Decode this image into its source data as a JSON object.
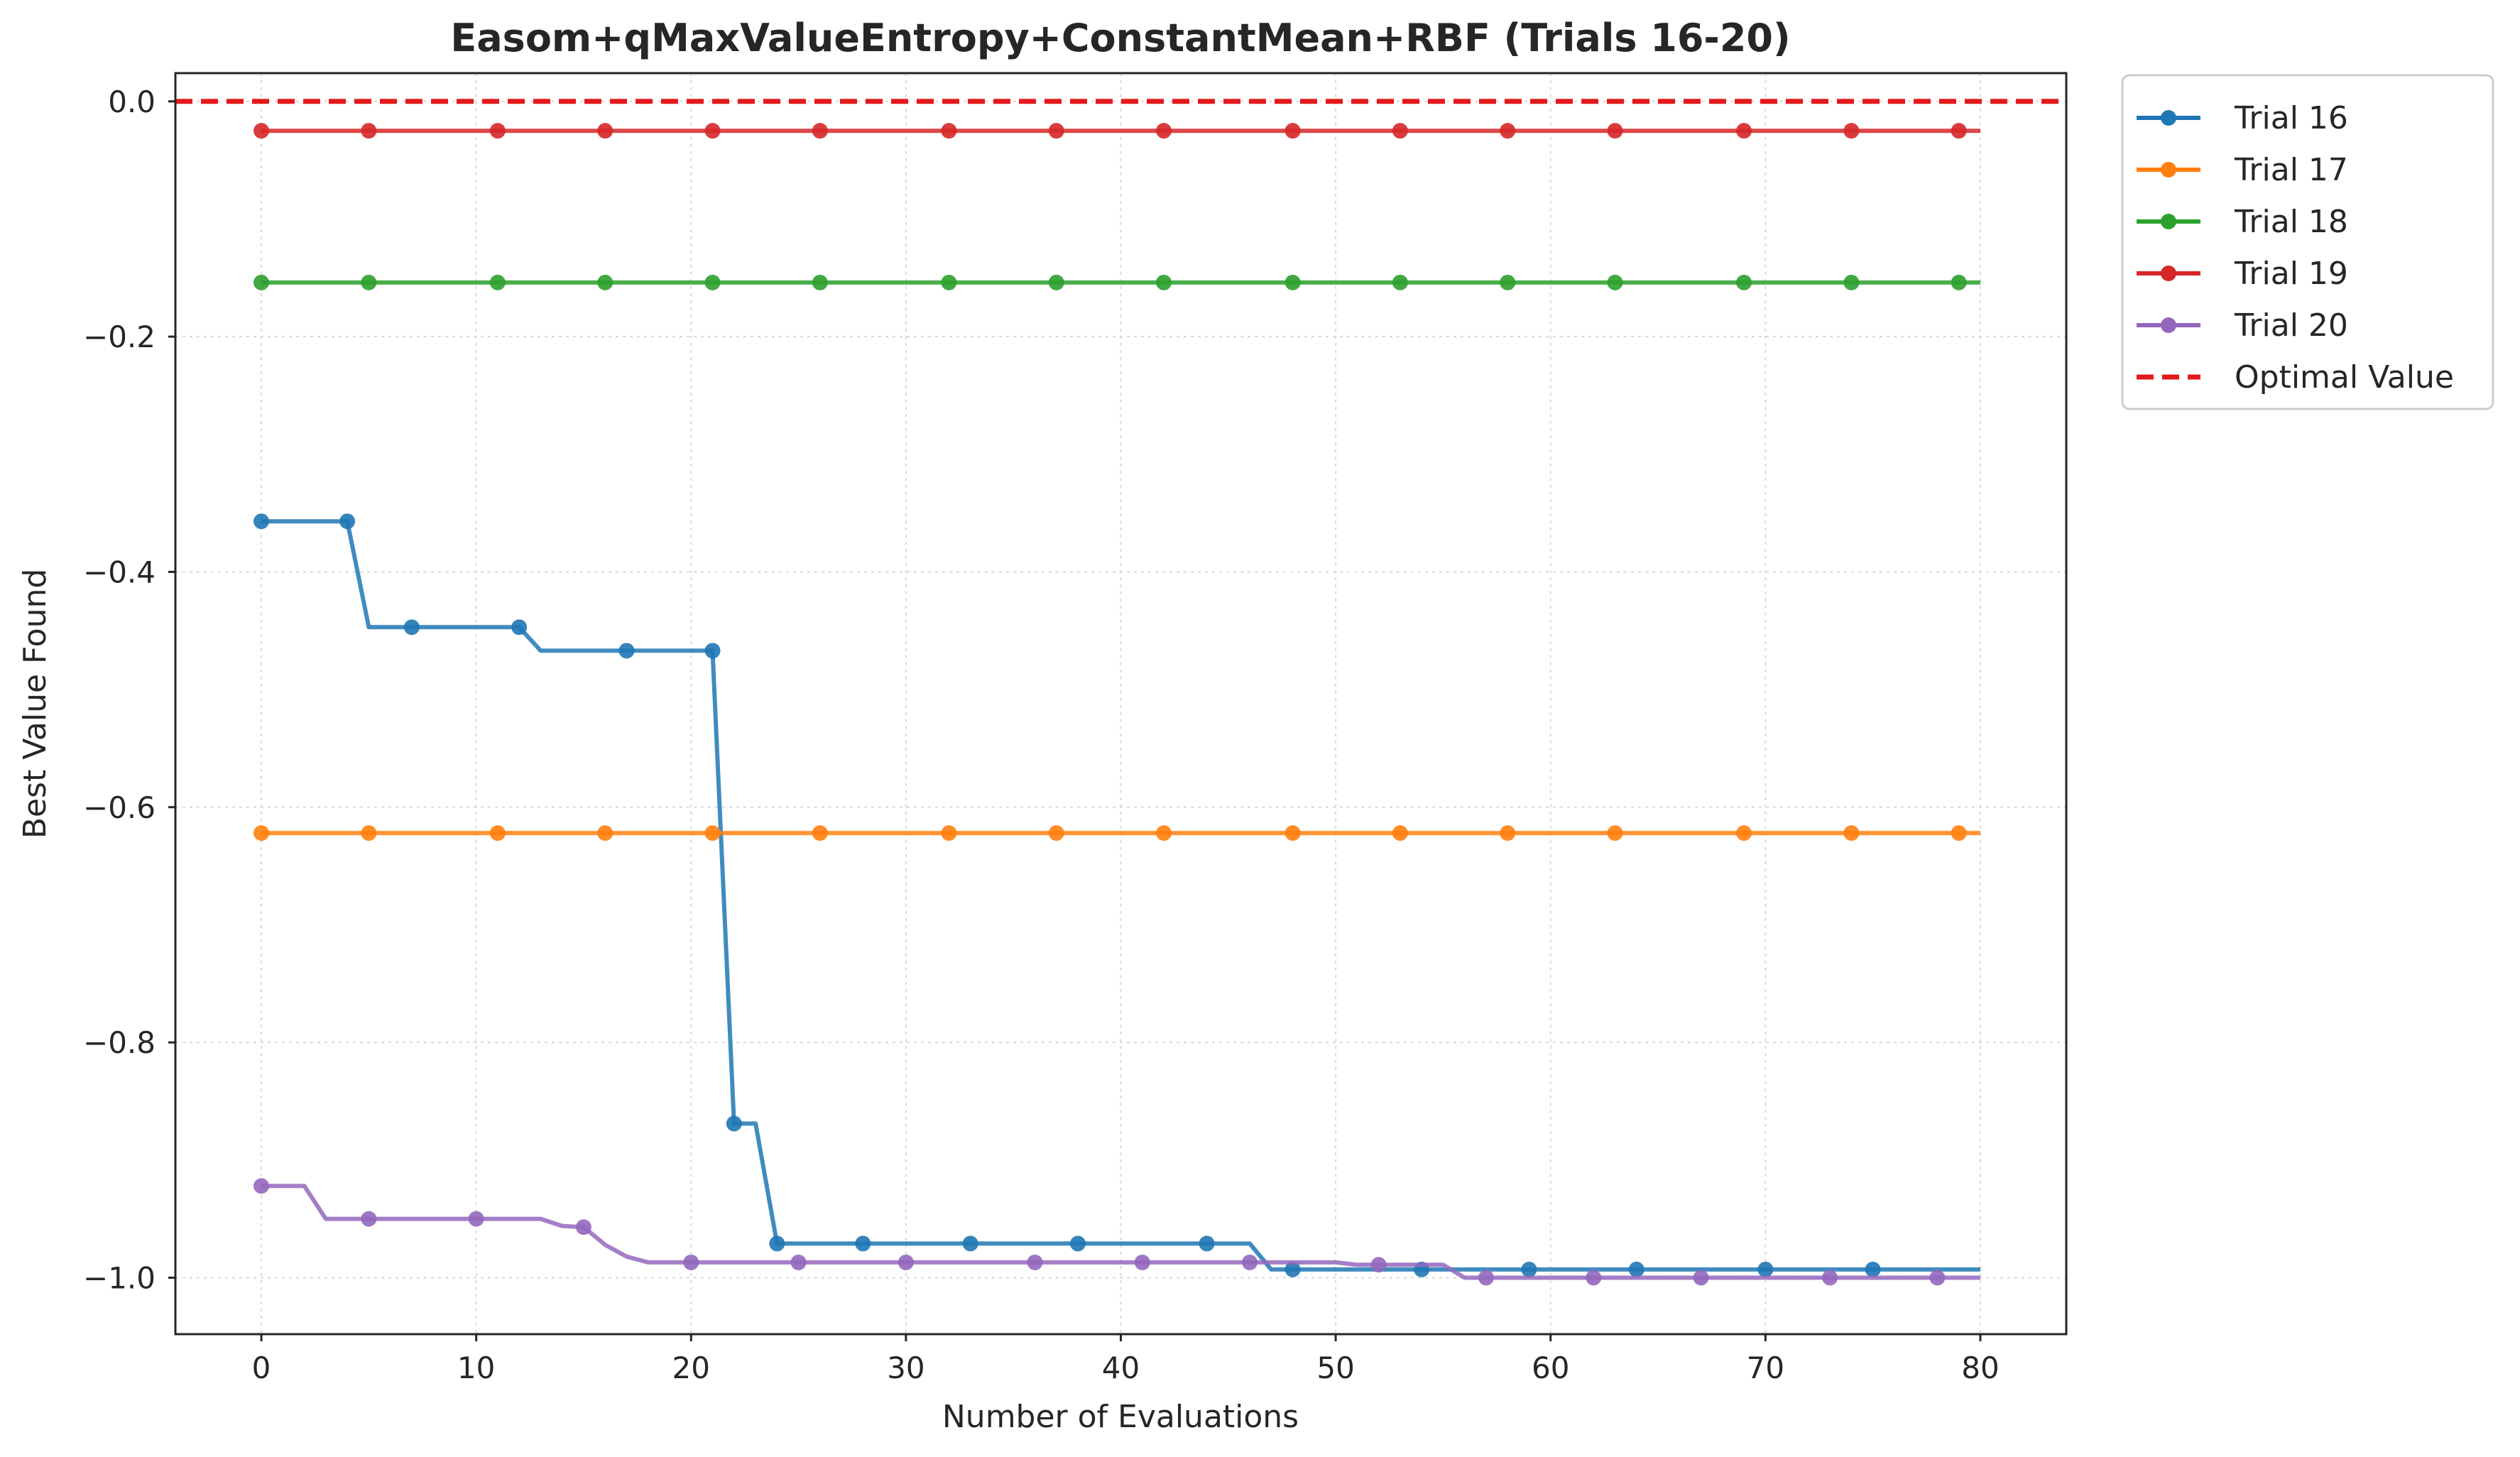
{
  "chart_data": {
    "type": "line",
    "title": "Easom+qMaxValueEntropy+ConstantMean+RBF (Trials 16-20)",
    "xlabel": "Number of Evaluations",
    "ylabel": "Best Value Found",
    "xlim": [
      -4,
      84
    ],
    "ylim": [
      -1.048,
      0.024
    ],
    "xticks": [
      0,
      10,
      20,
      30,
      40,
      50,
      60,
      70,
      80
    ],
    "xtick_labels": [
      "0",
      "10",
      "20",
      "30",
      "40",
      "50",
      "60",
      "70",
      "80"
    ],
    "yticks": [
      0.0,
      -0.2,
      -0.4,
      -0.6,
      -0.8,
      -1.0
    ],
    "ytick_labels": [
      "0.0",
      "−0.2",
      "−0.4",
      "−0.6",
      "−0.8",
      "−1.0"
    ],
    "grid": true,
    "legend_position": "outside-top-right",
    "series": [
      {
        "name": "Trial 16",
        "color": "#1f77b4",
        "line": [
          [
            0,
            -0.357
          ],
          [
            4,
            -0.357
          ],
          [
            5,
            -0.447
          ],
          [
            12,
            -0.447
          ],
          [
            13,
            -0.467
          ],
          [
            21,
            -0.467
          ],
          [
            22,
            -0.869
          ],
          [
            23,
            -0.869
          ],
          [
            24,
            -0.971
          ],
          [
            46,
            -0.971
          ],
          [
            47,
            -0.993
          ],
          [
            80,
            -0.993
          ]
        ],
        "markers_x": [
          0,
          4,
          7,
          12,
          17,
          21,
          22,
          24,
          28,
          33,
          38,
          44,
          48,
          54,
          59,
          64,
          70,
          75
        ],
        "markers_y": [
          -0.357,
          -0.357,
          -0.447,
          -0.447,
          -0.467,
          -0.467,
          -0.869,
          -0.971,
          -0.971,
          -0.971,
          -0.971,
          -0.971,
          -0.993,
          -0.993,
          -0.993,
          -0.993,
          -0.993,
          -0.993
        ]
      },
      {
        "name": "Trial 17",
        "color": "#ff7f0e",
        "line": [
          [
            0,
            -0.622
          ],
          [
            80,
            -0.622
          ]
        ],
        "markers_x": [
          0,
          5,
          11,
          16,
          21,
          26,
          32,
          37,
          42,
          48,
          53,
          58,
          63,
          69,
          74,
          79
        ],
        "markers_y": [
          -0.622,
          -0.622,
          -0.622,
          -0.622,
          -0.622,
          -0.622,
          -0.622,
          -0.622,
          -0.622,
          -0.622,
          -0.622,
          -0.622,
          -0.622,
          -0.622,
          -0.622,
          -0.622
        ]
      },
      {
        "name": "Trial 18",
        "color": "#2ca02c",
        "line": [
          [
            0,
            -0.154
          ],
          [
            80,
            -0.154
          ]
        ],
        "markers_x": [
          0,
          5,
          11,
          16,
          21,
          26,
          32,
          37,
          42,
          48,
          53,
          58,
          63,
          69,
          74,
          79
        ],
        "markers_y": [
          -0.154,
          -0.154,
          -0.154,
          -0.154,
          -0.154,
          -0.154,
          -0.154,
          -0.154,
          -0.154,
          -0.154,
          -0.154,
          -0.154,
          -0.154,
          -0.154,
          -0.154,
          -0.154
        ]
      },
      {
        "name": "Trial 19",
        "color": "#d62728",
        "line": [
          [
            0,
            -0.025
          ],
          [
            80,
            -0.025
          ]
        ],
        "markers_x": [
          0,
          5,
          11,
          16,
          21,
          26,
          32,
          37,
          42,
          48,
          53,
          58,
          63,
          69,
          74,
          79
        ],
        "markers_y": [
          -0.025,
          -0.025,
          -0.025,
          -0.025,
          -0.025,
          -0.025,
          -0.025,
          -0.025,
          -0.025,
          -0.025,
          -0.025,
          -0.025,
          -0.025,
          -0.025,
          -0.025,
          -0.025
        ]
      },
      {
        "name": "Trial 20",
        "color": "#9467bd",
        "line": [
          [
            0,
            -0.922
          ],
          [
            2,
            -0.922
          ],
          [
            3,
            -0.95
          ],
          [
            13,
            -0.95
          ],
          [
            14,
            -0.956
          ],
          [
            15,
            -0.957
          ],
          [
            16,
            -0.972
          ],
          [
            17,
            -0.982
          ],
          [
            18,
            -0.987
          ],
          [
            50,
            -0.987
          ],
          [
            51,
            -0.989
          ],
          [
            55,
            -0.989
          ],
          [
            56,
            -1.0
          ],
          [
            80,
            -1.0
          ]
        ],
        "markers_x": [
          0,
          5,
          10,
          15,
          20,
          25,
          30,
          36,
          41,
          46,
          52,
          57,
          62,
          67,
          73,
          78
        ],
        "markers_y": [
          -0.922,
          -0.95,
          -0.95,
          -0.957,
          -0.987,
          -0.987,
          -0.987,
          -0.987,
          -0.987,
          -0.987,
          -0.989,
          -1.0,
          -1.0,
          -1.0,
          -1.0,
          -1.0
        ]
      }
    ],
    "reference_line": {
      "name": "Optimal Value",
      "y": 0.0,
      "color": "#e31a1c",
      "style": "dashed"
    }
  }
}
